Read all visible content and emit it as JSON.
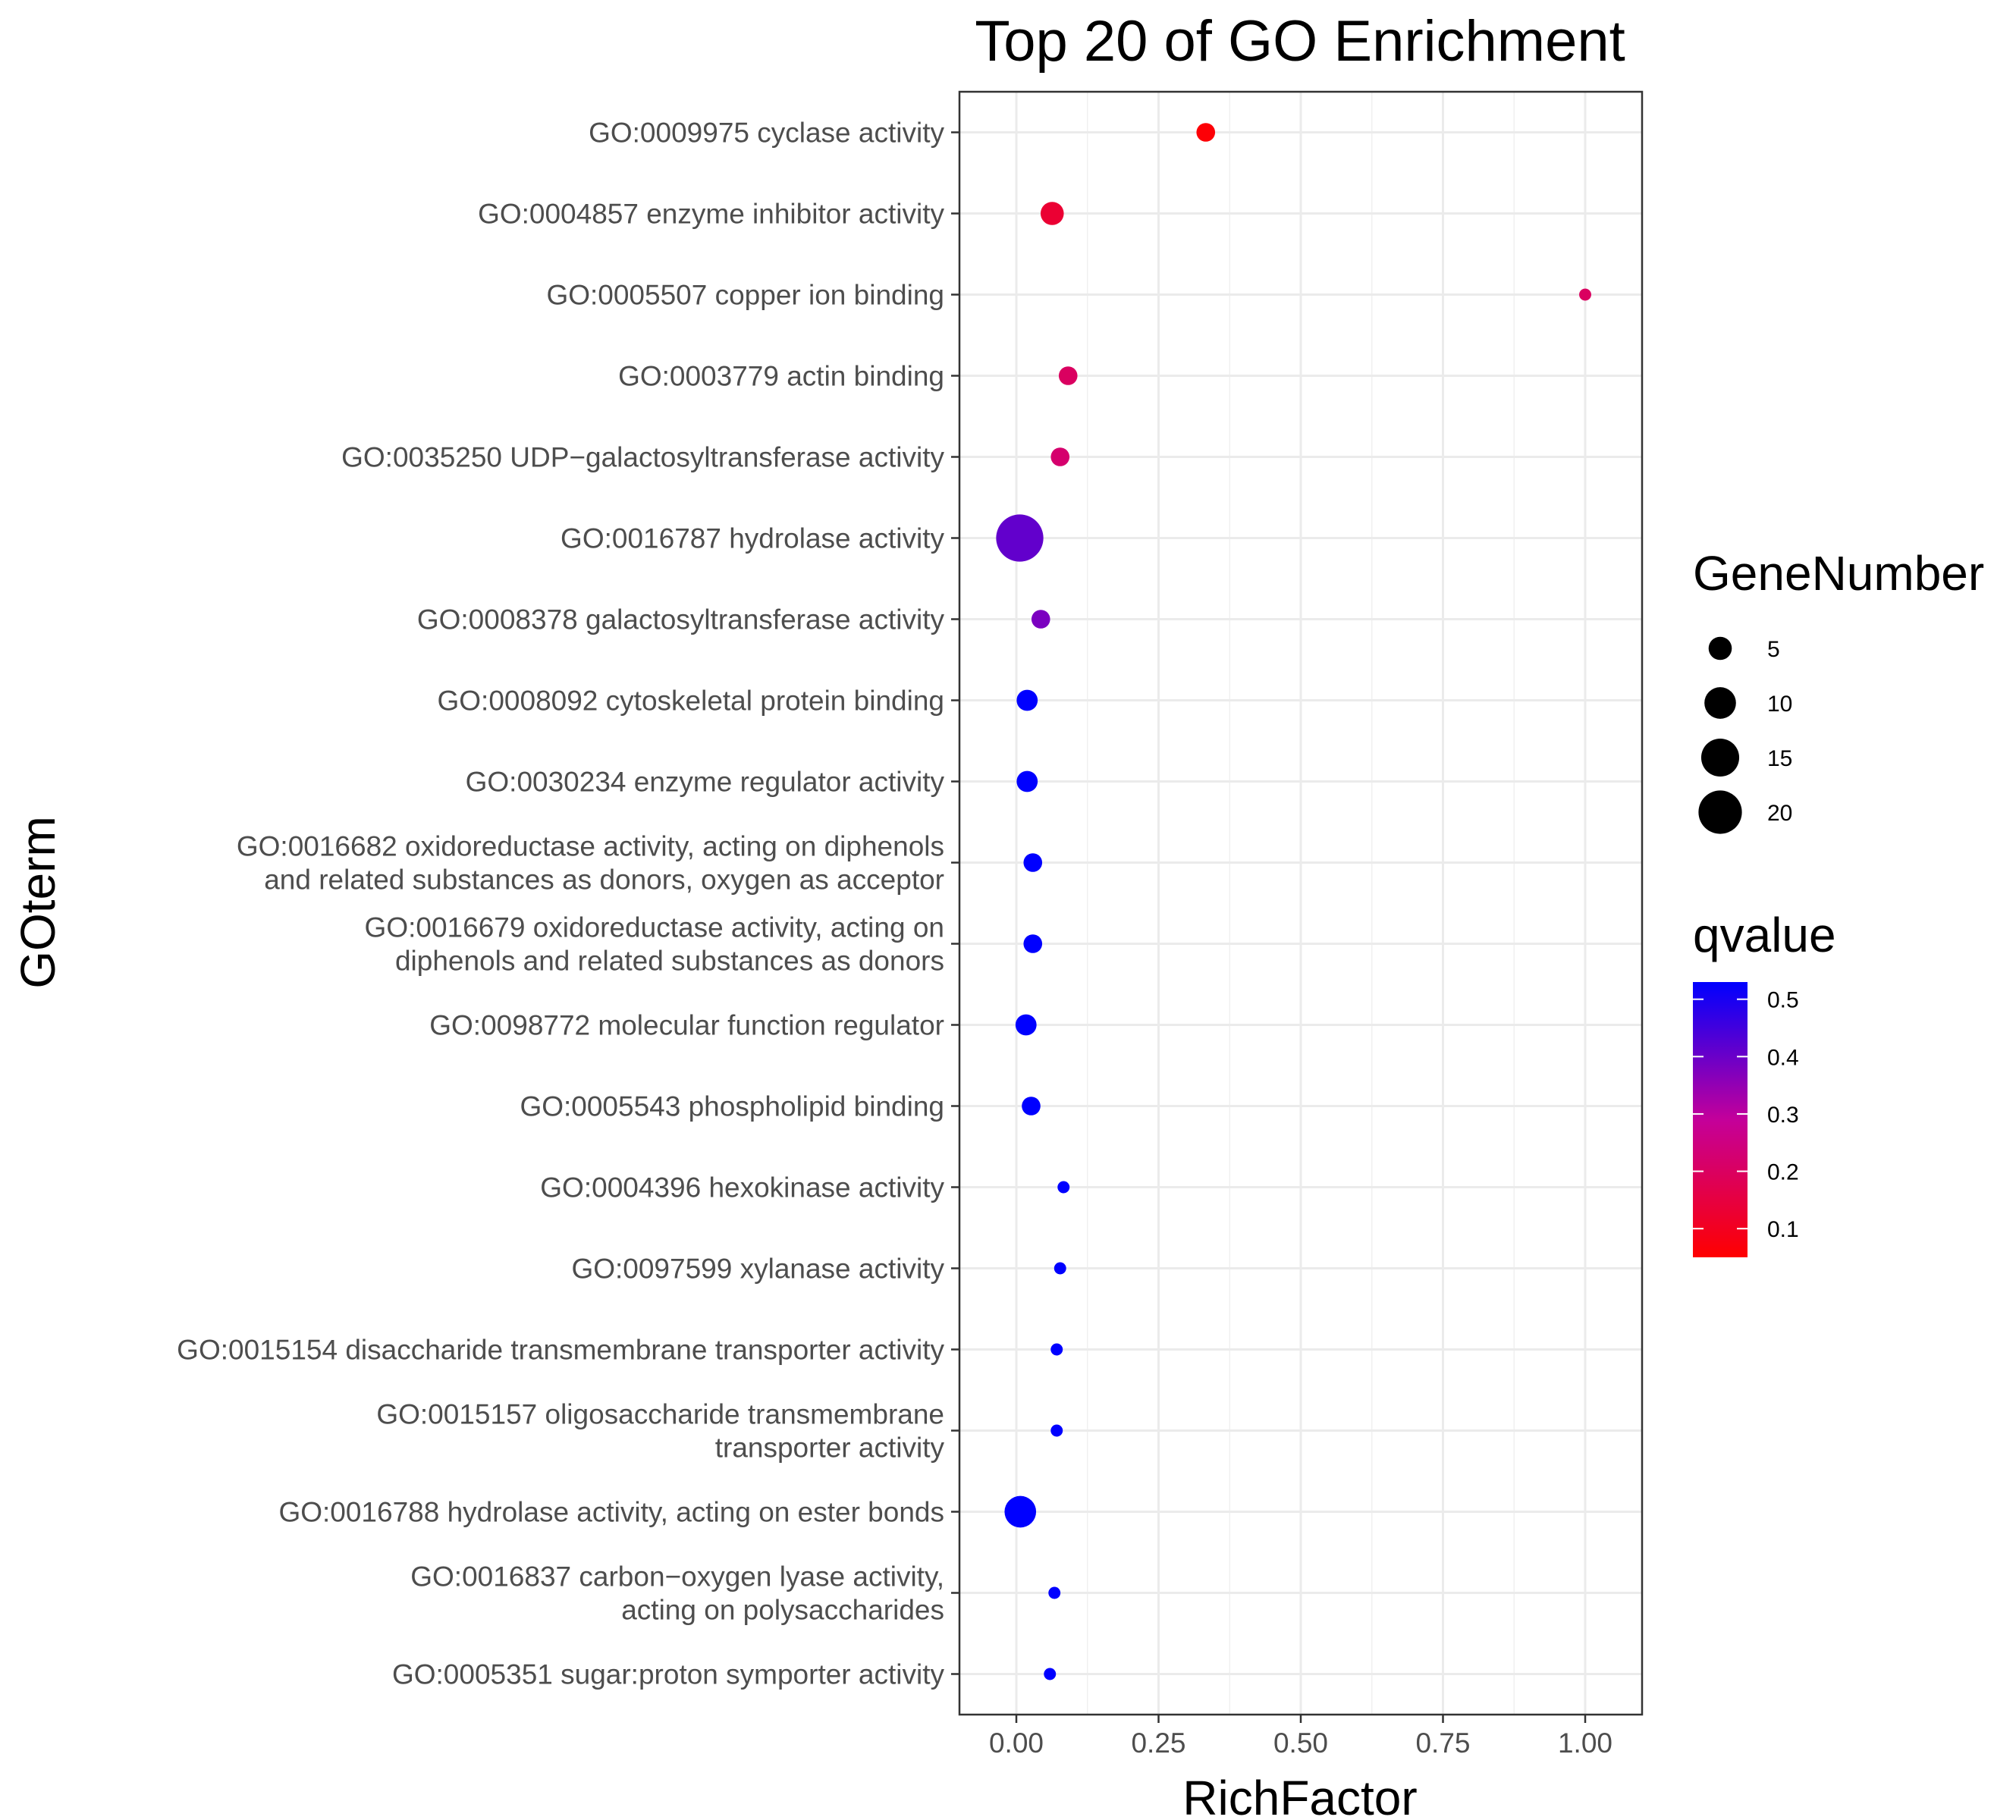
{
  "chart_data": {
    "type": "scatter",
    "title": "Top 20 of GO Enrichment",
    "xlabel": "RichFactor",
    "ylabel": "GOterm",
    "xlim": [
      -0.1,
      1.1
    ],
    "x_ticks": [
      {
        "value": 0,
        "label": "0.00"
      },
      {
        "value": 0.25,
        "label": "0.25"
      },
      {
        "value": 0.5,
        "label": "0.50"
      },
      {
        "value": 0.75,
        "label": "0.75"
      },
      {
        "value": 1.0,
        "label": "1.00"
      }
    ],
    "grid": true,
    "points": [
      {
        "term": [
          "GO:0009975 cyclase activity"
        ],
        "richfactor": 0.333,
        "gene_number": 3,
        "qvalue": 0.06
      },
      {
        "term": [
          "GO:0004857 enzyme inhibitor activity"
        ],
        "richfactor": 0.063,
        "gene_number": 5,
        "qvalue": 0.13
      },
      {
        "term": [
          "GO:0005507 copper ion binding"
        ],
        "richfactor": 1.0,
        "gene_number": 1,
        "qvalue": 0.2
      },
      {
        "term": [
          "GO:0003779 actin binding"
        ],
        "richfactor": 0.091,
        "gene_number": 3,
        "qvalue": 0.2
      },
      {
        "term": [
          "GO:0035250 UDP−galactosyltransferase activity"
        ],
        "richfactor": 0.077,
        "gene_number": 3,
        "qvalue": 0.22
      },
      {
        "term": [
          "GO:0016787 hydrolase activity"
        ],
        "richfactor": 0.006,
        "gene_number": 24,
        "qvalue": 0.41
      },
      {
        "term": [
          "GO:0008378 galactosyltransferase activity"
        ],
        "richfactor": 0.043,
        "gene_number": 3,
        "qvalue": 0.38
      },
      {
        "term": [
          "GO:0008092 cytoskeletal protein binding"
        ],
        "richfactor": 0.019,
        "gene_number": 4,
        "qvalue": 0.53
      },
      {
        "term": [
          "GO:0030234 enzyme regulator activity"
        ],
        "richfactor": 0.019,
        "gene_number": 4,
        "qvalue": 0.53
      },
      {
        "term": [
          "GO:0016682 oxidoreductase activity, acting on diphenols",
          "and related substances as donors, oxygen as acceptor"
        ],
        "richfactor": 0.029,
        "gene_number": 3,
        "qvalue": 0.53
      },
      {
        "term": [
          "GO:0016679 oxidoreductase activity, acting on",
          "diphenols and related substances as donors"
        ],
        "richfactor": 0.029,
        "gene_number": 3,
        "qvalue": 0.53
      },
      {
        "term": [
          "GO:0098772 molecular function regulator"
        ],
        "richfactor": 0.017,
        "gene_number": 4,
        "qvalue": 0.53
      },
      {
        "term": [
          "GO:0005543 phospholipid binding"
        ],
        "richfactor": 0.026,
        "gene_number": 3,
        "qvalue": 0.53
      },
      {
        "term": [
          "GO:0004396 hexokinase activity"
        ],
        "richfactor": 0.083,
        "gene_number": 1,
        "qvalue": 0.53
      },
      {
        "term": [
          "GO:0097599 xylanase activity"
        ],
        "richfactor": 0.077,
        "gene_number": 1,
        "qvalue": 0.53
      },
      {
        "term": [
          "GO:0015154 disaccharide transmembrane transporter activity"
        ],
        "richfactor": 0.071,
        "gene_number": 1,
        "qvalue": 0.53
      },
      {
        "term": [
          "GO:0015157 oligosaccharide transmembrane",
          "transporter activity"
        ],
        "richfactor": 0.071,
        "gene_number": 1,
        "qvalue": 0.53
      },
      {
        "term": [
          "GO:0016788 hydrolase activity, acting on ester bonds"
        ],
        "richfactor": 0.007,
        "gene_number": 10,
        "qvalue": 0.53
      },
      {
        "term": [
          "GO:0016837 carbon−oxygen lyase activity,",
          "acting on polysaccharides"
        ],
        "richfactor": 0.067,
        "gene_number": 1,
        "qvalue": 0.53
      },
      {
        "term": [
          "GO:0005351 sugar:proton symporter activity"
        ],
        "richfactor": 0.059,
        "gene_number": 1,
        "qvalue": 0.53
      }
    ],
    "size_legend": {
      "title": "GeneNumber",
      "entries": [
        {
          "value": 5,
          "label": "5"
        },
        {
          "value": 10,
          "label": "10"
        },
        {
          "value": 15,
          "label": "15"
        },
        {
          "value": 20,
          "label": "20"
        }
      ]
    },
    "color_legend": {
      "title": "qvalue",
      "range": [
        0.05,
        0.53
      ],
      "low_color": "#ff0000",
      "high_color": "#0000ff",
      "ticks": [
        {
          "value": 0.1,
          "label": "0.1"
        },
        {
          "value": 0.2,
          "label": "0.2"
        },
        {
          "value": 0.3,
          "label": "0.3"
        },
        {
          "value": 0.4,
          "label": "0.4"
        },
        {
          "value": 0.5,
          "label": "0.5"
        }
      ]
    },
    "legend_position": "right"
  }
}
